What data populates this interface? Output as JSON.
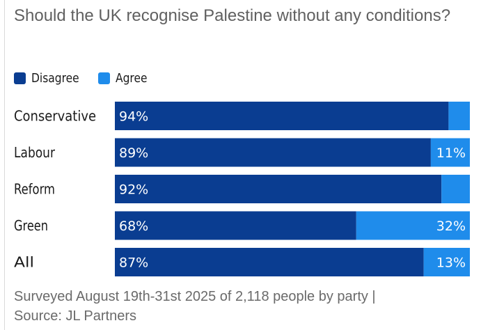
{
  "colors": {
    "disagree": "#0a3d91",
    "agree": "#1f8ceb"
  },
  "chart_data": {
    "type": "bar",
    "orientation": "horizontal",
    "stacked": true,
    "title": "Should the UK recognise Palestine without any conditions?",
    "categories": [
      "Conservative",
      "Labour",
      "Reform",
      "Green",
      "All"
    ],
    "series": [
      {
        "name": "Disagree",
        "values": [
          94,
          89,
          92,
          68,
          87
        ],
        "labels": [
          "94%",
          "89%",
          "92%",
          "68%",
          "87%"
        ]
      },
      {
        "name": "Agree",
        "values": [
          6,
          11,
          8,
          32,
          13
        ],
        "labels": [
          "",
          "11%",
          "",
          "32%",
          "13%"
        ]
      }
    ],
    "xlim": [
      0,
      100
    ],
    "legend": "top-left",
    "grid": false
  },
  "footer": {
    "line1": "Surveyed August 19th-31st 2025 of 2,118 people by party |",
    "line2": "Source: JL Partners"
  }
}
